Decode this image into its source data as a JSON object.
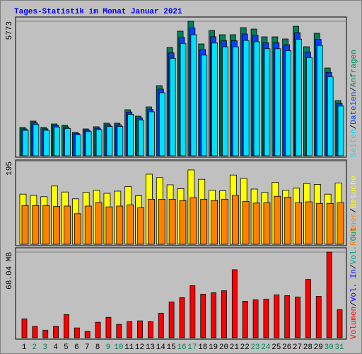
{
  "chart_data": [
    {
      "type": "bar",
      "title": "Tages-Statistik im Monat Januar 2021",
      "legend_separator": "/",
      "ylim": [
        0,
        5773
      ],
      "yticks": [
        5773
      ],
      "series": [
        {
          "name": "Anfragen",
          "color": "#00805c",
          "values": [
            1215,
            1489,
            1215,
            1367,
            1306,
            1003,
            1154,
            1246,
            1397,
            1397,
            1975,
            1701,
            2096,
            3008,
            4648,
            5347,
            5773,
            4800,
            5377,
            5195,
            5195,
            5499,
            5438,
            5104,
            5104,
            5013,
            5560,
            4679,
            5256,
            3767,
            2370
          ]
        },
        {
          "name": "Dateien",
          "color": "#0040ff",
          "values": [
            1154,
            1415,
            1154,
            1299,
            1241,
            953,
            1096,
            1184,
            1327,
            1327,
            1876,
            1616,
            1991,
            2858,
            4416,
            5080,
            5484,
            4560,
            5108,
            4935,
            4935,
            5224,
            5166,
            4849,
            4849,
            4762,
            5282,
            4445,
            4993,
            3579,
            2252
          ]
        },
        {
          "name": "Seiten",
          "color": "#00e0ff",
          "values": [
            1094,
            1340,
            1094,
            1230,
            1175,
            903,
            1039,
            1121,
            1257,
            1257,
            1778,
            1531,
            1886,
            2707,
            4183,
            4812,
            5196,
            4320,
            4839,
            4676,
            4676,
            4949,
            4894,
            4594,
            4594,
            4512,
            5004,
            4211,
            4730,
            3390,
            2133
          ]
        }
      ]
    },
    {
      "type": "bar",
      "ylim": [
        0,
        195
      ],
      "yticks": [
        195
      ],
      "series": [
        {
          "name": "Besuche",
          "color": "#ffff00",
          "values": [
            118,
            115,
            112,
            137,
            123,
            107,
            122,
            127,
            120,
            125,
            136,
            114,
            165,
            157,
            140,
            131,
            175,
            153,
            127,
            126,
            163,
            155,
            130,
            122,
            146,
            127,
            132,
            143,
            141,
            118,
            144
          ]
        },
        {
          "name": "Rechner",
          "color": "#ff8000",
          "values": [
            91,
            91,
            91,
            89,
            90,
            72,
            90,
            98,
            88,
            90,
            93,
            86,
            106,
            106,
            106,
            103,
            110,
            106,
            103,
            106,
            115,
            101,
            97,
            98,
            113,
            111,
            98,
            100,
            96,
            96,
            98
          ]
        }
      ]
    },
    {
      "type": "bar",
      "ylim": [
        0,
        68.04
      ],
      "yticks": [
        {
          "value": 68.04,
          "label": "68.04 MB"
        }
      ],
      "categories": [
        "1",
        "2",
        "3",
        "4",
        "5",
        "6",
        "7",
        "8",
        "9",
        "10",
        "11",
        "12",
        "13",
        "14",
        "15",
        "16",
        "17",
        "18",
        "19",
        "20",
        "21",
        "22",
        "23",
        "24",
        "25",
        "26",
        "27",
        "28",
        "29",
        "30",
        "31"
      ],
      "category_colors": [
        "#000000",
        "#00805c",
        "#00805c",
        "#000000",
        "#000000",
        "#000000",
        "#000000",
        "#000000",
        "#00805c",
        "#00805c",
        "#000000",
        "#000000",
        "#000000",
        "#000000",
        "#000000",
        "#00805c",
        "#00805c",
        "#000000",
        "#000000",
        "#000000",
        "#000000",
        "#000000",
        "#00805c",
        "#00805c",
        "#000000",
        "#000000",
        "#000000",
        "#000000",
        "#000000",
        "#00805c",
        "#00805c"
      ],
      "series": [
        {
          "name": "Volumen",
          "color": "#ff0000",
          "values": [
            15.0,
            9.0,
            6.0,
            9.0,
            18.4,
            7.8,
            5.0,
            12.3,
            16.2,
            10.6,
            12.8,
            13.4,
            12.8,
            19.5,
            28.4,
            31.8,
            41.3,
            34.6,
            35.7,
            37.3,
            54.0,
            29.0,
            30.1,
            30.7,
            34.0,
            33.4,
            32.3,
            46.3,
            32.9,
            68.0,
            22.3
          ]
        }
      ],
      "extra_legend": [
        {
          "name": "Vol. In",
          "color": "#0000ff"
        },
        {
          "name": "Vol. Out",
          "color": "#00a080"
        }
      ]
    }
  ]
}
